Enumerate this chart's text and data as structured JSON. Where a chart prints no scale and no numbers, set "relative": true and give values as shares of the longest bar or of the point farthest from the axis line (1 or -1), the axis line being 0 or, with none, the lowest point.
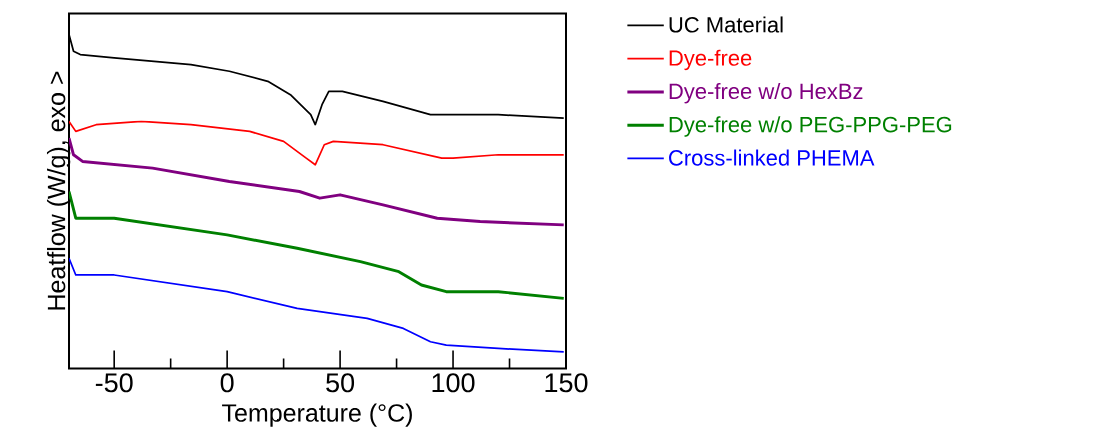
{
  "chart_data": {
    "type": "line",
    "relative": true,
    "xlabel": "Temperature (°C)",
    "ylabel": "Heatflow (W/g), exo >",
    "xlim": [
      -70,
      150
    ],
    "xticks": [
      {
        "value": -50,
        "label": "-50"
      },
      {
        "value": -25,
        "label": null
      },
      {
        "value": 0,
        "label": "0"
      },
      {
        "value": 25,
        "label": null
      },
      {
        "value": 50,
        "label": "50"
      },
      {
        "value": 75,
        "label": null
      },
      {
        "value": 100,
        "label": "100"
      },
      {
        "value": 125,
        "label": null
      },
      {
        "value": 150,
        "label": "150"
      }
    ],
    "legend": "top right",
    "grid": false,
    "marker": "none",
    "line_style": "solid",
    "series": [
      {
        "name": "UC Material",
        "color": "#000000",
        "x": [
          -70,
          -68,
          -65,
          -50,
          -33,
          -16,
          1,
          18,
          28,
          37,
          39,
          42,
          45,
          51,
          69,
          90,
          120,
          149
        ],
        "values": [
          1.0,
          0.95,
          0.94,
          0.93,
          0.92,
          0.91,
          0.89,
          0.86,
          0.82,
          0.76,
          0.73,
          0.79,
          0.83,
          0.83,
          0.8,
          0.76,
          0.76,
          0.75
        ]
      },
      {
        "name": "Dye-free",
        "color": "#ff0000",
        "x": [
          -70,
          -67,
          -58,
          -38,
          -16,
          10,
          25,
          35,
          39,
          43,
          47,
          69,
          95,
          100,
          120,
          149
        ],
        "values": [
          0.74,
          0.71,
          0.73,
          0.74,
          0.73,
          0.71,
          0.68,
          0.63,
          0.61,
          0.67,
          0.68,
          0.67,
          0.63,
          0.63,
          0.64,
          0.64
        ]
      },
      {
        "name": "Dye-free w/o HexBz",
        "color": "#800080",
        "x": [
          -70,
          -68,
          -64,
          -33,
          1,
          32,
          41,
          50,
          69,
          93,
          112,
          149
        ],
        "values": [
          0.69,
          0.64,
          0.62,
          0.6,
          0.56,
          0.53,
          0.51,
          0.52,
          0.49,
          0.45,
          0.44,
          0.43
        ]
      },
      {
        "name": "Dye-free w/o PEG-PPG-PEG",
        "color": "#008000",
        "x": [
          -70,
          -67,
          -50,
          0,
          31,
          59,
          76,
          86,
          97,
          120,
          149
        ],
        "values": [
          0.53,
          0.45,
          0.45,
          0.4,
          0.36,
          0.32,
          0.29,
          0.25,
          0.23,
          0.23,
          0.21
        ]
      },
      {
        "name": "Cross-linked PHEMA",
        "color": "#0000ff",
        "x": [
          -70,
          -67,
          -50,
          0,
          31,
          62,
          78,
          90,
          97,
          120,
          149
        ],
        "values": [
          0.33,
          0.28,
          0.28,
          0.23,
          0.18,
          0.15,
          0.12,
          0.08,
          0.07,
          0.06,
          0.05
        ]
      }
    ]
  }
}
